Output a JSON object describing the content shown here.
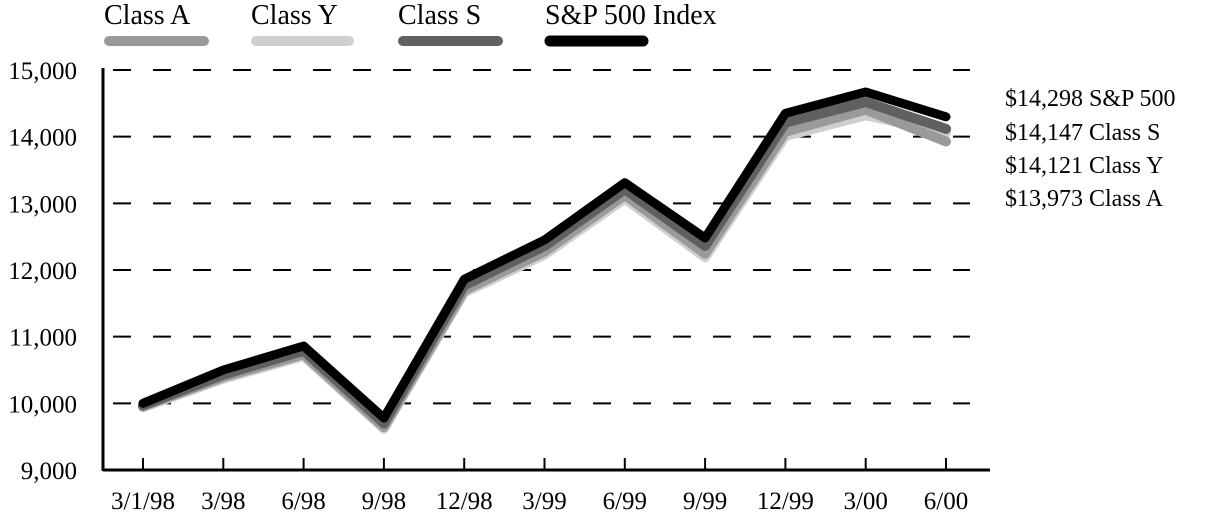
{
  "chart_data": {
    "type": "line",
    "categories": [
      "3/1/98",
      "3/98",
      "6/98",
      "9/98",
      "12/98",
      "3/99",
      "6/99",
      "9/99",
      "12/99",
      "3/00",
      "6/00"
    ],
    "ylim": [
      9000,
      15000
    ],
    "yticks": [
      "9,000",
      "10,000",
      "11,000",
      "12,000",
      "13,000",
      "14,000",
      "15,000"
    ],
    "ytick_values": [
      9000,
      10000,
      11000,
      12000,
      13000,
      14000,
      15000
    ],
    "grid": "horizontal-dashed",
    "legend_position": "top",
    "series": [
      {
        "name": "Class A",
        "color": "#9a9a9a",
        "values": [
          10000,
          10440,
          10780,
          9690,
          11740,
          12320,
          13170,
          12290,
          14120,
          14450,
          13973
        ]
      },
      {
        "name": "Class Y",
        "color": "#cfcfcf",
        "values": [
          10000,
          10430,
          10770,
          9680,
          11720,
          12290,
          13130,
          12250,
          14070,
          14380,
          14121
        ]
      },
      {
        "name": "Class S",
        "color": "#606060",
        "values": [
          10000,
          10460,
          10820,
          9730,
          11800,
          12390,
          13240,
          12390,
          14240,
          14550,
          14147
        ]
      },
      {
        "name": "S&P 500 Index",
        "color": "#000000",
        "values": [
          10000,
          10500,
          10860,
          9780,
          11860,
          12450,
          13310,
          12480,
          14350,
          14670,
          14298
        ]
      }
    ],
    "end_labels": [
      {
        "text": "$14,298 S&P 500"
      },
      {
        "text": "$14,147 Class S"
      },
      {
        "text": "$14,121 Class Y"
      },
      {
        "text": "$13,973 Class A"
      }
    ]
  }
}
